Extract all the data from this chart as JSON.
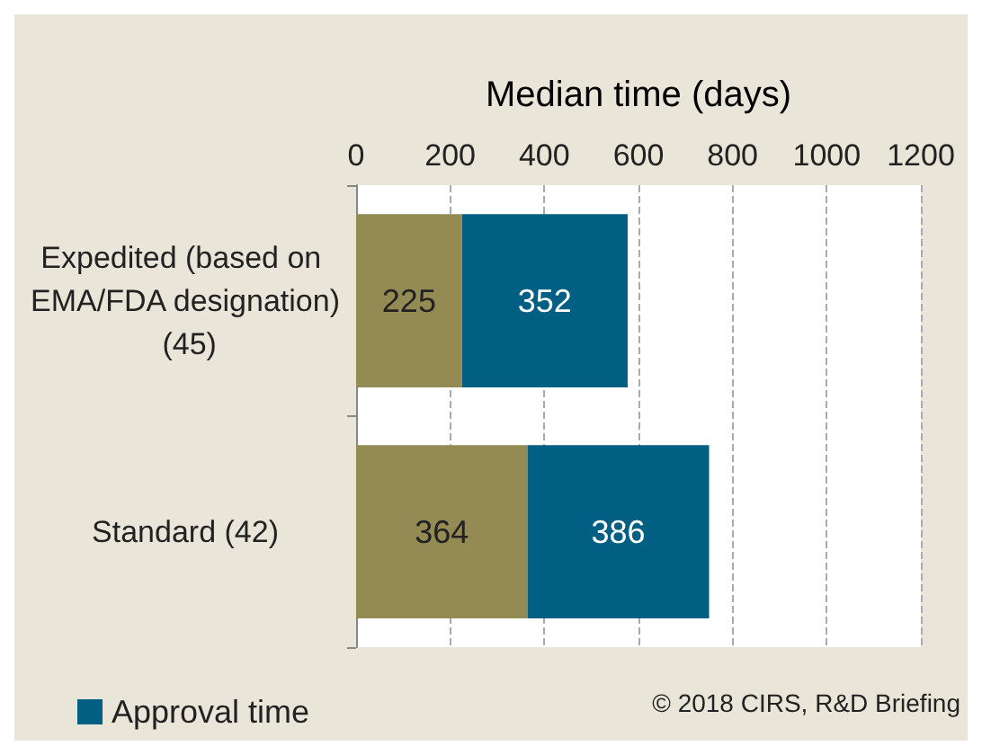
{
  "chart_data": {
    "type": "bar",
    "orientation": "horizontal",
    "stacked": true,
    "xlabel": "Median time (days)",
    "categories": [
      "Expedited (based on EMA/FDA designation) (45)",
      "Standard (42)"
    ],
    "series": [
      {
        "color": "#948a54",
        "values": [
          225,
          364
        ]
      },
      {
        "name": "Approval time",
        "color": "#005f83",
        "values": [
          352,
          386
        ]
      }
    ],
    "xlim": [
      0,
      1200
    ],
    "xticks": [
      0,
      200,
      400,
      600,
      800,
      1000,
      1200
    ],
    "grid": "x",
    "legend": "bottom left",
    "data_labels": true,
    "annotations": [
      "© 2018 CIRS, R&D Briefing"
    ]
  }
}
